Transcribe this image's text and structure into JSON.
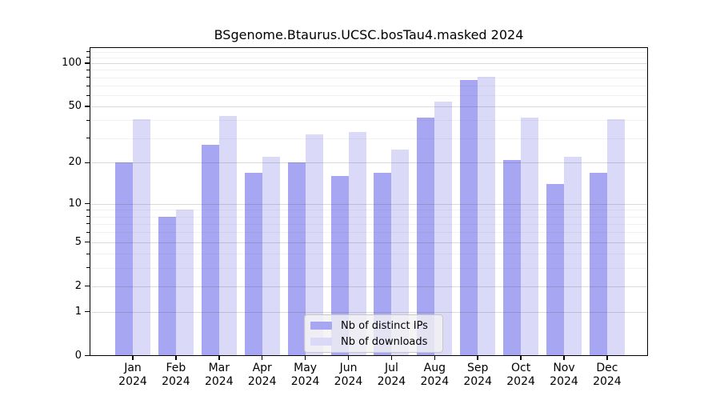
{
  "title": "BSgenome.Btaurus.UCSC.bosTau4.masked 2024",
  "chart_data": {
    "type": "bar",
    "title": "BSgenome.Btaurus.UCSC.bosTau4.masked 2024",
    "categories": [
      "Jan",
      "Feb",
      "Mar",
      "Apr",
      "May",
      "Jun",
      "Jul",
      "Aug",
      "Sep",
      "Oct",
      "Nov",
      "Dec"
    ],
    "x_year": "2024",
    "series": [
      {
        "name": "Nb of distinct IPs",
        "color": "#a6a6f2",
        "values": [
          20,
          8,
          27,
          17,
          20,
          16,
          17,
          42,
          77,
          21,
          14,
          17
        ]
      },
      {
        "name": "Nb of downloads",
        "color": "#dadaf8",
        "values": [
          41,
          9,
          43,
          22,
          32,
          33,
          25,
          54,
          81,
          42,
          22,
          41
        ]
      }
    ],
    "xlabel": "",
    "ylabel": "",
    "y_scale": "log10(value+1)",
    "y_ticks": [
      0,
      1,
      2,
      5,
      10,
      20,
      50,
      100
    ],
    "y_minor_ticks": [
      3,
      4,
      6,
      7,
      8,
      9,
      30,
      40,
      60,
      70,
      80,
      90,
      110,
      120
    ],
    "ylim": [
      0,
      129
    ],
    "grid": true,
    "legend_position": "bottom-center",
    "colors": {
      "distinct_ips": "#a6a6f2",
      "downloads": "#dadaf8",
      "axis": "#000000",
      "grid_major": "#d6d6d6",
      "grid_minor": "#efefef",
      "legend_bg": "#f2f2f2"
    }
  }
}
